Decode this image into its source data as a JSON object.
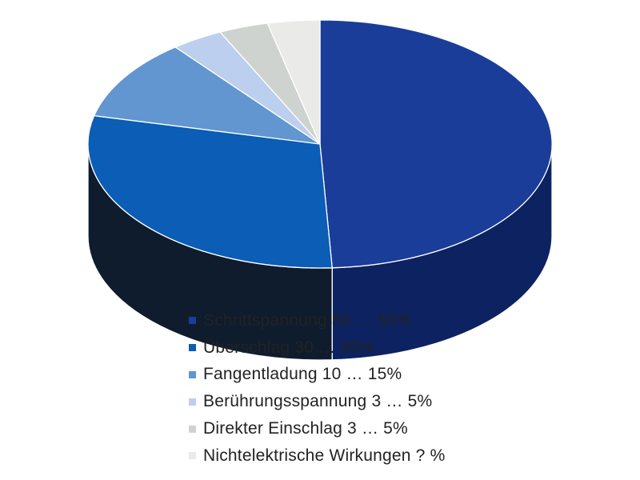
{
  "chart_data": {
    "type": "pie",
    "style": "3d",
    "slices": [
      {
        "label": "Schrittspannung 50 … 55%",
        "value": 50,
        "color": "#1a3d9a",
        "side_color": "#0d2260"
      },
      {
        "label": "Überschlag 30 … 35%",
        "value": 30,
        "color": "#0b5db5",
        "side_color": "#0e1c2e"
      },
      {
        "label": "Fangentladung 10 … 15%",
        "value": 10.8,
        "color": "#6196d0",
        "side_color": "#101a26"
      },
      {
        "label": "Berührungsspannung 3 … 5%",
        "value": 3.7,
        "color": "#bccfee",
        "side_color": "#2d333b"
      },
      {
        "label": "Direkter Einschlag 3 … 5%",
        "value": 3.5,
        "color": "#cfd3cf",
        "side_color": "#3d3d3b"
      },
      {
        "label": "Nichtelektrische Wirkungen ? %",
        "value": 3.7,
        "color": "#eaeae9",
        "side_color": "#5c5c5a"
      }
    ],
    "legend_position": "bottom"
  }
}
